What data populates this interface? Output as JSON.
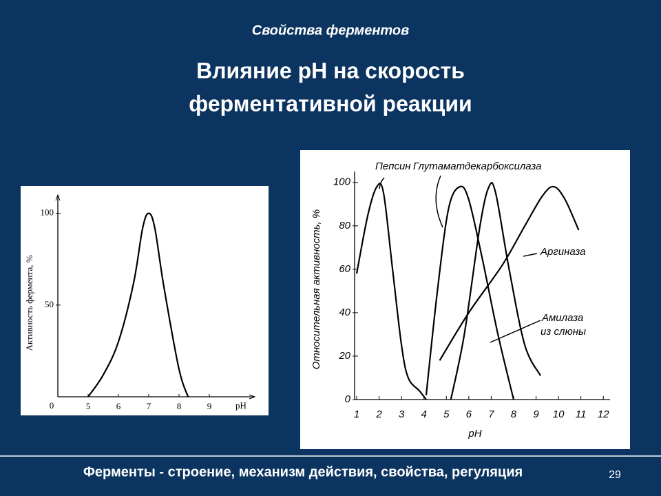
{
  "header": {
    "subtitle": "Свойства ферментов",
    "title_lines": [
      "Влияние pH на скорость",
      "ферментативной реакции"
    ]
  },
  "chart_data": [
    {
      "type": "line",
      "ylabel": "Активность фермента, %",
      "xlabel": "pH",
      "origin_label": "0",
      "xlim": [
        4,
        10.5
      ],
      "ylim": [
        0,
        110
      ],
      "xticks": [
        5,
        6,
        7,
        8,
        9
      ],
      "yticks": [
        50,
        100
      ],
      "series": [
        {
          "name": null,
          "color": "#000000",
          "x": [
            5,
            5.5,
            6,
            6.5,
            6.8,
            7,
            7.2,
            7.5,
            8,
            8.3
          ],
          "values": [
            0,
            12,
            30,
            62,
            92,
            100,
            92,
            60,
            15,
            0
          ]
        }
      ]
    },
    {
      "type": "line",
      "ylabel": "Относительная активность, %",
      "xlabel": "pH",
      "xlim": [
        0.8,
        12.3
      ],
      "ylim": [
        0,
        105
      ],
      "xticks": [
        1,
        2,
        3,
        4,
        5,
        6,
        7,
        8,
        9,
        10,
        11,
        12
      ],
      "yticks": [
        0,
        20,
        40,
        60,
        80,
        100
      ],
      "series": [
        {
          "name": "Пепсин",
          "color": "#000000",
          "x": [
            1,
            1.5,
            1.9,
            2.2,
            2.6,
            3,
            3.3,
            3.8,
            4.1
          ],
          "values": [
            58,
            85,
            98,
            95,
            60,
            25,
            10,
            4,
            0
          ]
        },
        {
          "name": "Глутаматдекарбоксилаза",
          "color": "#000000",
          "x": [
            4.1,
            4.6,
            5.1,
            5.6,
            6,
            6.6,
            7.3,
            8
          ],
          "values": [
            2,
            50,
            88,
            98,
            92,
            65,
            30,
            0
          ]
        },
        {
          "name": "Аргиназа",
          "color": "#000000",
          "x": [
            4.7,
            6,
            7.5,
            8.5,
            9.3,
            9.8,
            10.3,
            10.9
          ],
          "values": [
            18,
            40,
            62,
            80,
            94,
            98,
            92,
            78
          ]
        },
        {
          "name": "Амилаза из слюны",
          "color": "#000000",
          "x": [
            5.2,
            5.8,
            6.5,
            6.9,
            7.2,
            7.8,
            8.5,
            9.2
          ],
          "values": [
            0,
            30,
            80,
            98,
            95,
            60,
            25,
            11
          ]
        }
      ]
    }
  ],
  "footer": {
    "text": "Ферменты - строение, механизм действия, свойства, регуляция",
    "page": "29"
  }
}
